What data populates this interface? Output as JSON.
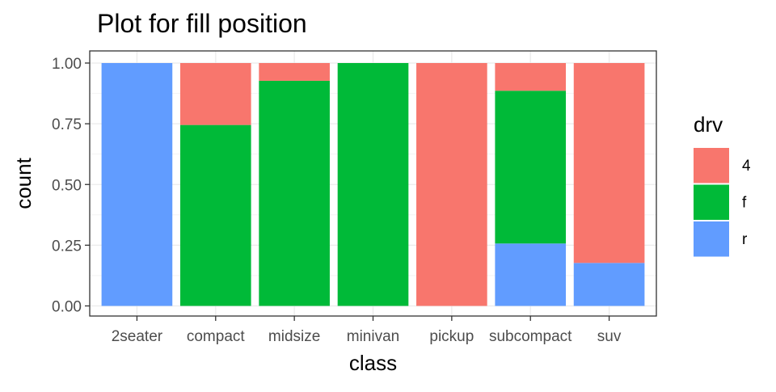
{
  "chart_data": {
    "type": "bar",
    "stacked": true,
    "normalized": true,
    "title": "Plot for fill position",
    "xlabel": "class",
    "ylabel": "count",
    "ylim": [
      0,
      1
    ],
    "yticks": [
      "0.00",
      "0.25",
      "0.50",
      "0.75",
      "1.00"
    ],
    "ytick_values": [
      0,
      0.25,
      0.5,
      0.75,
      1
    ],
    "grid": true,
    "legend_position": "right",
    "legend_title": "drv",
    "categories": [
      "2seater",
      "compact",
      "midsize",
      "minivan",
      "pickup",
      "subcompact",
      "suv"
    ],
    "series": [
      {
        "name": "4",
        "color": "#F8766D",
        "values": [
          0,
          0.255,
          0.073,
          0,
          1,
          0.114,
          0.823
        ]
      },
      {
        "name": "f",
        "color": "#00BA38",
        "values": [
          0,
          0.745,
          0.927,
          1,
          0,
          0.629,
          0
        ]
      },
      {
        "name": "r",
        "color": "#619CFF",
        "values": [
          1,
          0,
          0,
          0,
          0,
          0.257,
          0.177
        ]
      }
    ]
  }
}
